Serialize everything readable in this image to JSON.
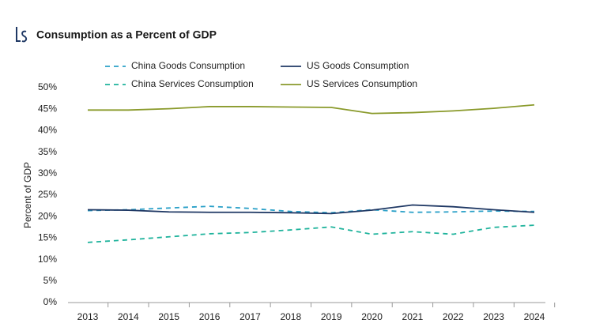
{
  "chart_data": {
    "type": "line",
    "title": "Consumption as a Percent of GDP",
    "y_label": "Percent of GDP",
    "categories": [
      "2013",
      "2014",
      "2015",
      "2016",
      "2017",
      "2018",
      "2019",
      "2020",
      "2021",
      "2022",
      "2023",
      "2024"
    ],
    "series": [
      {
        "name": "China Goods Consumption",
        "color": "#2aa0c8",
        "dashed": true,
        "values": [
          21.4,
          21.6,
          22.0,
          22.4,
          21.9,
          21.2,
          20.9,
          21.6,
          21.0,
          21.1,
          21.3,
          21.2
        ]
      },
      {
        "name": "US Goods Consumption",
        "color": "#1f3864",
        "dashed": false,
        "values": [
          21.6,
          21.5,
          21.1,
          21.0,
          21.0,
          20.9,
          20.7,
          21.5,
          22.7,
          22.3,
          21.6,
          21.0
        ]
      },
      {
        "name": "China Services Consumption",
        "color": "#1fb39c",
        "dashed": true,
        "values": [
          14.0,
          14.6,
          15.3,
          16.0,
          16.3,
          16.9,
          17.6,
          15.9,
          16.5,
          15.9,
          17.5,
          18.0
        ]
      },
      {
        "name": "US Services Consumption",
        "color": "#8a9a2b",
        "dashed": false,
        "values": [
          44.8,
          44.8,
          45.1,
          45.6,
          45.6,
          45.5,
          45.4,
          44.0,
          44.2,
          44.6,
          45.2,
          46.0
        ]
      }
    ],
    "ylim": [
      0,
      50
    ],
    "yticks": [
      {
        "value": 0,
        "label": "0%"
      },
      {
        "value": 5,
        "label": "5%"
      },
      {
        "value": 10,
        "label": "10%"
      },
      {
        "value": 15,
        "label": "15%"
      },
      {
        "value": 20,
        "label": "20%"
      },
      {
        "value": 25,
        "label": "25%"
      },
      {
        "value": 30,
        "label": "30%"
      },
      {
        "value": 35,
        "label": "35%"
      },
      {
        "value": 40,
        "label": "40%"
      },
      {
        "value": 45,
        "label": "45%"
      },
      {
        "value": 50,
        "label": "50%"
      }
    ],
    "grid": false
  }
}
